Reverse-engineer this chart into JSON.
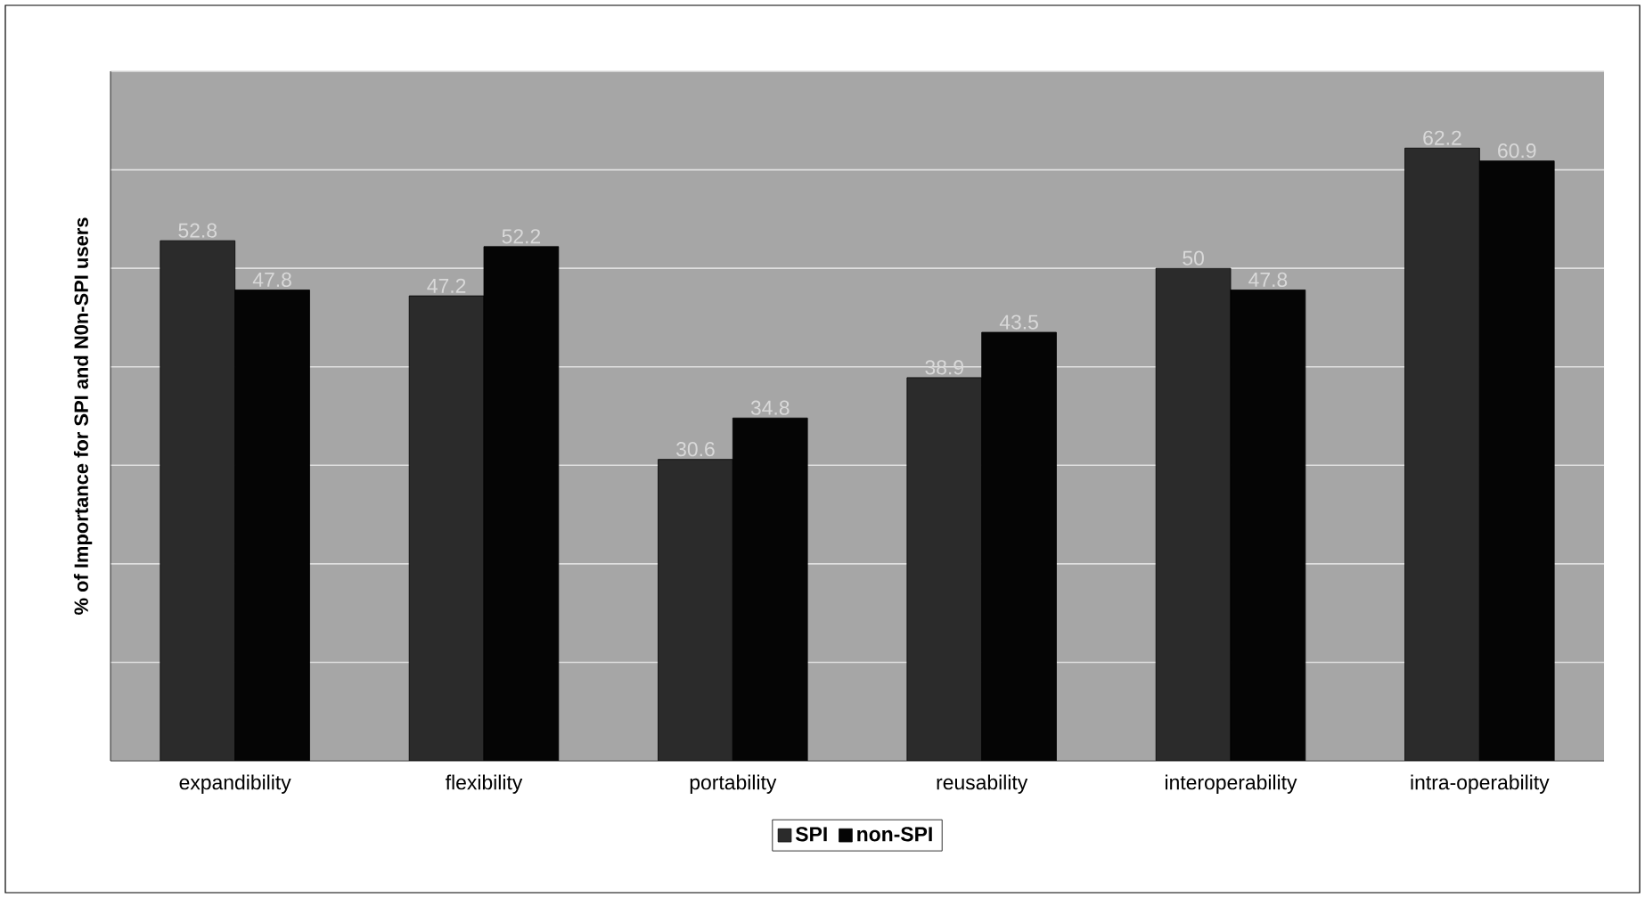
{
  "chart_data": {
    "type": "bar",
    "ylabel": "% of Importance for SPI and N0n-SPI users",
    "categories": [
      "expandibility",
      "flexibility",
      "portability",
      "reusability",
      "interoperability",
      "intra-operability"
    ],
    "series": [
      {
        "name": "SPI",
        "color": "#2b2b2b",
        "values": [
          52.8,
          47.2,
          30.6,
          38.9,
          50,
          62.2
        ]
      },
      {
        "name": "non-SPI",
        "color": "#050505",
        "values": [
          47.8,
          52.2,
          34.8,
          43.5,
          47.8,
          60.9
        ]
      }
    ],
    "ylim": [
      0,
      70
    ],
    "yticks": [
      {
        "value": 0,
        "label": null
      },
      {
        "value": 10,
        "label": null
      },
      {
        "value": 20,
        "label": null
      },
      {
        "value": 30,
        "label": null
      },
      {
        "value": 40,
        "label": null
      },
      {
        "value": 50,
        "label": null
      },
      {
        "value": 60,
        "label": null
      },
      {
        "value": 70,
        "label": null
      }
    ],
    "tick_labels": "x",
    "grid": "y",
    "legend": "bottom",
    "data_labels": true
  }
}
